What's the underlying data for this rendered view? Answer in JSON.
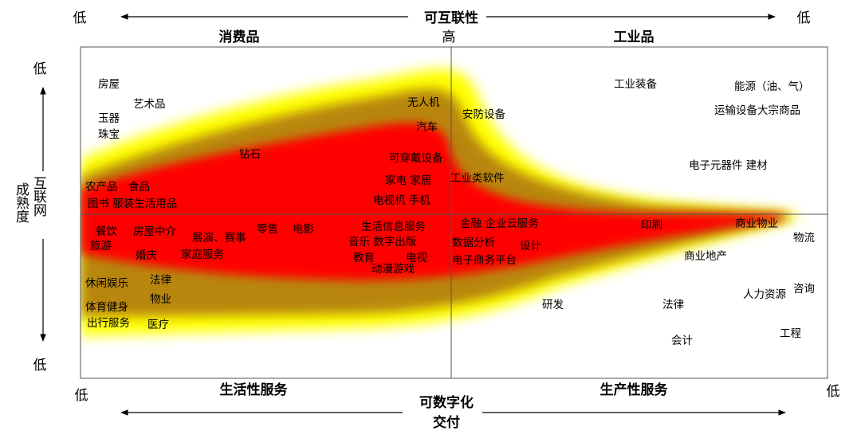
{
  "axes": {
    "top_title": "可互联性",
    "top_left_low": "低",
    "top_right_low": "低",
    "center_high": "高",
    "left_title_line1": "互联网",
    "left_title_line2": "成熟度",
    "left_top_low": "低",
    "left_bottom_low": "低",
    "bottom_left_low": "低",
    "bottom_right_low": "低",
    "bottom_title_line1": "可数字化",
    "bottom_title_line2": "交付"
  },
  "quadrants": {
    "top_left": "消费品",
    "top_right": "工业品",
    "bottom_left": "生活性服务",
    "bottom_right": "生产性服务"
  },
  "items": {
    "fangwu": "房屋",
    "yishupin": "艺术品",
    "yuqi": "玉器",
    "zhubao": "珠宝",
    "zuanshi": "钻石",
    "nongchanpin": "农产品",
    "shipin": "食品",
    "tushu_fuzhuang": "图书 服装生活用品",
    "wurenji": "无人机",
    "qiche": "汽车",
    "kechuandai": "可穿戴设备",
    "jiadian_jiaju": "家电 家居",
    "dianshiji_shouji": "电视机 手机",
    "anfang": "安防设备",
    "gongyeruanjian": "工业类软件",
    "gongyezhuangbei": "工业装备",
    "nengyuan": "能源（油、气）",
    "yunshu_dazong": "运输设备大宗商品",
    "dianzi_jiancai": "电子元器件 建材",
    "canyin": "餐饮",
    "fangwuzhongjie": "房屋中介",
    "lvyou": "旅游",
    "zhanyan": "展演、赛事",
    "lingshou": "零售",
    "dianying": "电影",
    "hunqing": "婚庆",
    "jiatingfuwu": "家庭服务",
    "shenghuoxinxi": "生活信息服务",
    "yinyue_shuzi": "音乐 数字出版",
    "jiaoyu": "教育",
    "dianshi": "电视",
    "dongman": "动漫游戏",
    "xiuxian": "休闲娱乐",
    "falv_left": "法律",
    "wuye": "物业",
    "tiyu": "体育健身",
    "chuxing": "出行服务",
    "yiliao": "医疗",
    "jinrong_yun": "金融  企业云服务",
    "shujufenxi": "数据分析",
    "sheji": "设计",
    "dianzishangwu": "电子商务平台",
    "yanfa": "研发",
    "yinshua": "印刷",
    "shangyewuye": "商业物业",
    "wuliu": "物流",
    "shangyedichan": "商业地产",
    "renliziyuan": "人力资源",
    "zixun": "咨询",
    "falv_right": "法律",
    "kuaiji": "会计",
    "gongcheng": "工程"
  },
  "colors": {
    "band_outer": "#ffff00",
    "band_middle": "#b8860b",
    "band_core": "#ff0000",
    "frame": "#555555"
  }
}
